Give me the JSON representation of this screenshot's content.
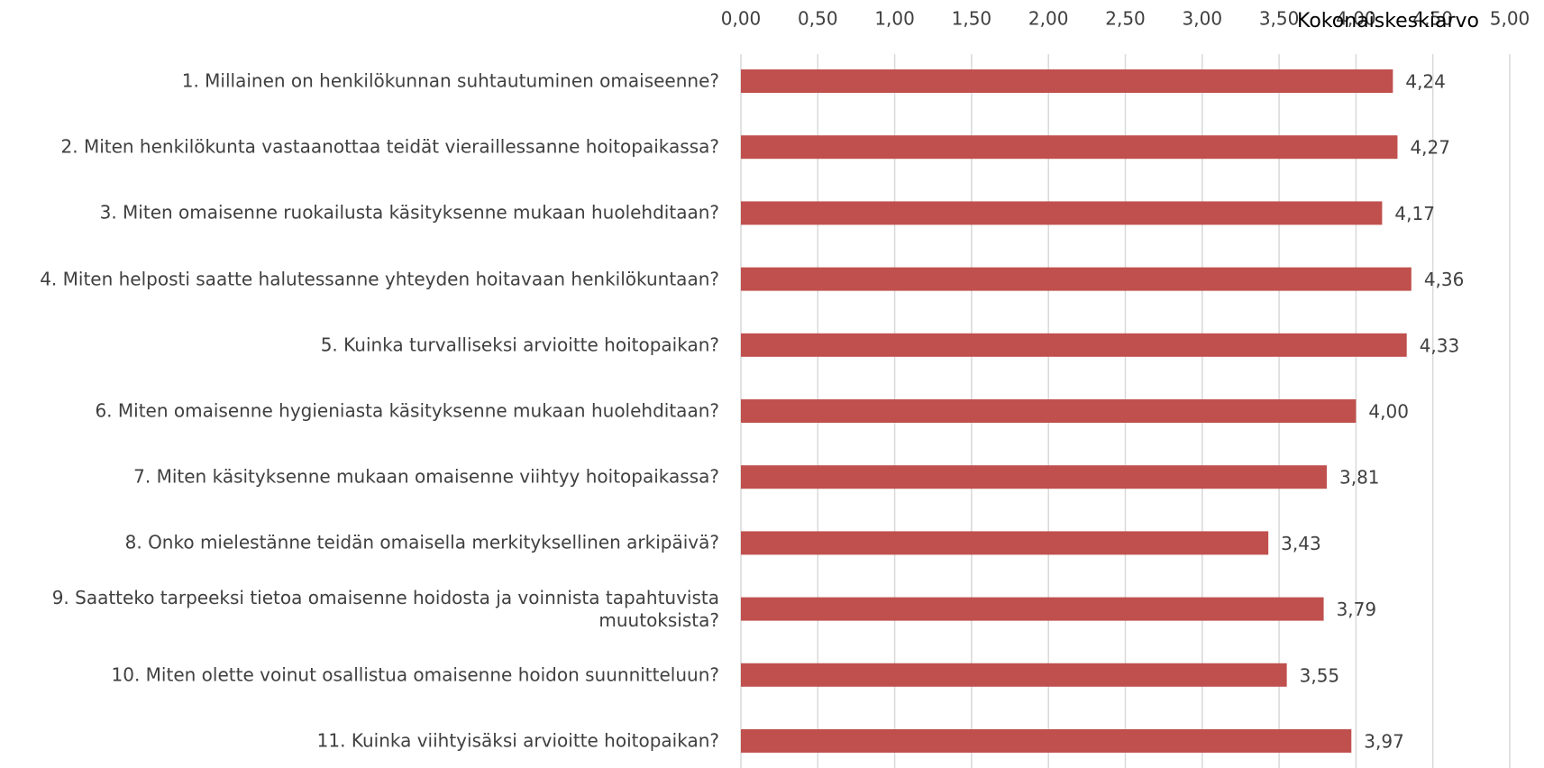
{
  "chart_data": {
    "type": "bar",
    "orientation": "horizontal",
    "title": "Kokonaiskeskiarvo",
    "categories": [
      "1. Millainen on henkilökunnan suhtautuminen omaiseenne?",
      "2. Miten henkilökunta vastaanottaa teidät vieraillessanne hoitopaikassa?",
      "3. Miten omaisenne ruokailusta käsityksenne mukaan huolehditaan?",
      "4. Miten helposti saatte halutessanne yhteyden hoitavaan henkilökuntaan?",
      "5. Kuinka turvalliseksi arvioitte hoitopaikan?",
      "6. Miten omaisenne hygieniasta käsityksenne mukaan huolehditaan?",
      "7. Miten käsityksenne mukaan omaisenne viihtyy hoitopaikassa?",
      "8. Onko mielestänne teidän omaisella merkityksellinen arkipäivä?",
      "9. Saatteko tarpeeksi tietoa omaisenne hoidosta ja voinnista tapahtuvista muutoksista?",
      "10. Miten olette voinut osallistua omaisenne hoidon suunnitteluun?",
      "11. Kuinka viihtyisäksi arvioitte hoitopaikan?"
    ],
    "values": [
      4.24,
      4.27,
      4.17,
      4.36,
      4.33,
      4.0,
      3.81,
      3.43,
      3.79,
      3.55,
      3.97
    ],
    "value_labels": [
      "4,24",
      "4,27",
      "4,17",
      "4,36",
      "4,33",
      "4,00",
      "3,81",
      "3,43",
      "3,79",
      "3,55",
      "3,97"
    ],
    "color": "#c0504d",
    "xlim": [
      0,
      5
    ],
    "xticks": [
      {
        "value": 0,
        "label": "0,00"
      },
      {
        "value": 0.5,
        "label": "0,50"
      },
      {
        "value": 1,
        "label": "1,00"
      },
      {
        "value": 1.5,
        "label": "1,50"
      },
      {
        "value": 2,
        "label": "2,00"
      },
      {
        "value": 2.5,
        "label": "2,50"
      },
      {
        "value": 3,
        "label": "3,00"
      },
      {
        "value": 3.5,
        "label": "3,50"
      },
      {
        "value": 4,
        "label": "4,00"
      },
      {
        "value": 4.5,
        "label": "4,50"
      },
      {
        "value": 5,
        "label": "5,00"
      }
    ],
    "grid": true
  }
}
